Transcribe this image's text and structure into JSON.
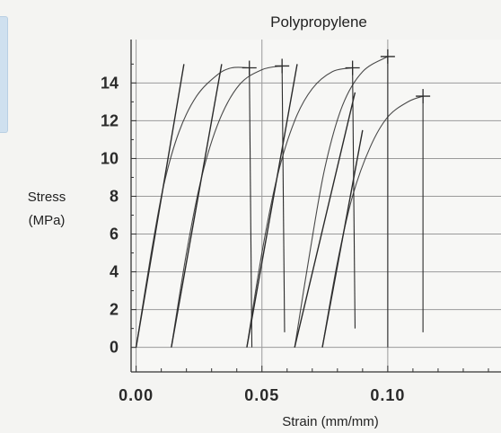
{
  "chart_data": {
    "type": "line",
    "title": "Polypropylene",
    "xlabel": "Strain (mm/mm)",
    "ylabel_line1": "Stress",
    "ylabel_line2": "(MPa)",
    "xlim": [
      -0.002,
      0.145
    ],
    "ylim": [
      -1.3,
      16.3
    ],
    "xticks": [
      0.0,
      0.05,
      0.1
    ],
    "xtick_labels": [
      "0.00",
      "0.05",
      "0.10"
    ],
    "yticks": [
      0,
      2,
      4,
      6,
      8,
      10,
      12,
      14
    ],
    "ytick_labels": [
      "0",
      "2",
      "4",
      "6",
      "8",
      "10",
      "12",
      "14"
    ],
    "grid": true,
    "line_color": "#2b2b2b",
    "series": [
      {
        "curve": [
          [
            0.0,
            0.0
          ],
          [
            0.006,
            5.0
          ],
          [
            0.011,
            8.6
          ],
          [
            0.017,
            11.4
          ],
          [
            0.024,
            13.3
          ],
          [
            0.032,
            14.4
          ],
          [
            0.038,
            14.8
          ],
          [
            0.045,
            14.8
          ]
        ],
        "drop": [
          [
            0.045,
            14.8
          ],
          [
            0.046,
            0.0
          ]
        ],
        "offset_line": [
          [
            0.0,
            0.0
          ],
          [
            0.019,
            15.0
          ]
        ],
        "failure_point": [
          0.045,
          14.8
        ]
      },
      {
        "curve": [
          [
            0.014,
            0.0
          ],
          [
            0.02,
            5.0
          ],
          [
            0.026,
            9.0
          ],
          [
            0.033,
            12.0
          ],
          [
            0.041,
            13.9
          ],
          [
            0.05,
            14.7
          ],
          [
            0.058,
            14.9
          ]
        ],
        "drop": [
          [
            0.058,
            14.9
          ],
          [
            0.059,
            0.8
          ]
        ],
        "offset_line": [
          [
            0.014,
            0.0
          ],
          [
            0.034,
            15.0
          ]
        ],
        "failure_point": [
          0.058,
          14.9
        ]
      },
      {
        "curve": [
          [
            0.044,
            0.0
          ],
          [
            0.05,
            5.0
          ],
          [
            0.056,
            9.0
          ],
          [
            0.063,
            12.0
          ],
          [
            0.07,
            13.7
          ],
          [
            0.078,
            14.6
          ],
          [
            0.086,
            14.8
          ]
        ],
        "drop": [
          [
            0.086,
            14.8
          ],
          [
            0.087,
            1.0
          ]
        ],
        "offset_line": [
          [
            0.044,
            0.0
          ],
          [
            0.064,
            15.0
          ]
        ],
        "failure_point": [
          0.086,
          14.8
        ]
      },
      {
        "curve": [
          [
            0.063,
            0.0
          ],
          [
            0.069,
            5.0
          ],
          [
            0.075,
            9.5
          ],
          [
            0.082,
            12.8
          ],
          [
            0.09,
            14.6
          ],
          [
            0.1,
            15.4
          ]
        ],
        "drop": [
          [
            0.1,
            15.4
          ],
          [
            0.1,
            0.0
          ]
        ],
        "offset_line": [
          [
            0.063,
            0.0
          ],
          [
            0.087,
            13.5
          ]
        ],
        "failure_point": [
          0.1,
          15.4
        ]
      },
      {
        "curve": [
          [
            0.074,
            0.0
          ],
          [
            0.08,
            4.5
          ],
          [
            0.086,
            8.0
          ],
          [
            0.093,
            10.6
          ],
          [
            0.1,
            12.2
          ],
          [
            0.108,
            13.0
          ],
          [
            0.114,
            13.3
          ]
        ],
        "drop": [
          [
            0.114,
            13.3
          ],
          [
            0.114,
            0.8
          ]
        ],
        "offset_line": [
          [
            0.074,
            0.0
          ],
          [
            0.09,
            11.5
          ]
        ],
        "failure_point": [
          0.114,
          13.3
        ]
      }
    ]
  }
}
